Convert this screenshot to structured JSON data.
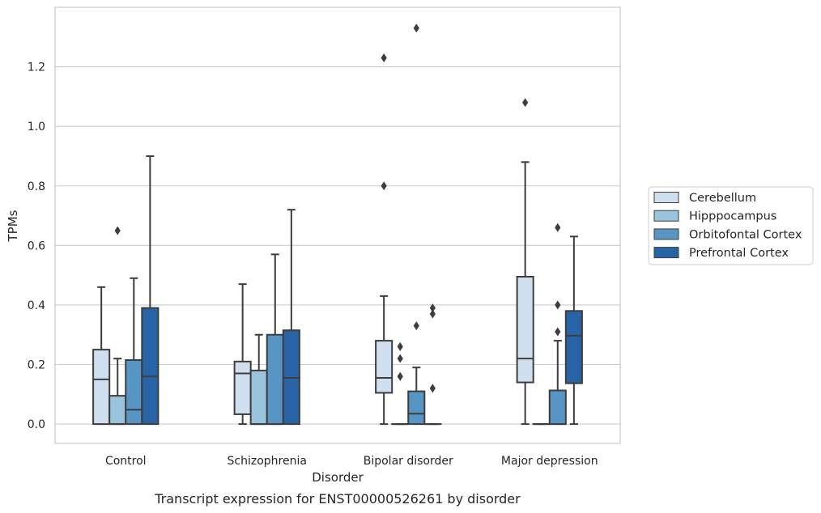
{
  "caption": "Transcript expression for ENST00000526261 by disorder",
  "chart_data": {
    "type": "box",
    "xlabel": "Disorder",
    "ylabel": "TPMs",
    "ylim": [
      -0.065,
      1.4
    ],
    "yticks": [
      "0.0",
      "0.2",
      "0.4",
      "0.6",
      "0.8",
      "1.0",
      "1.2"
    ],
    "grid": true,
    "legend_position": "right",
    "categories": [
      "Control",
      "Schizophrenia",
      "Bipolar disorder",
      "Major depression"
    ],
    "series": [
      {
        "name": "Cerebellum",
        "color": "#cfdff0",
        "boxes": [
          {
            "whisker_low": 0,
            "q1": 0,
            "median": 0.15,
            "q3": 0.25,
            "whisker_high": 0.46,
            "outliers": []
          },
          {
            "whisker_low": 0,
            "q1": 0.033,
            "median": 0.17,
            "q3": 0.21,
            "whisker_high": 0.47,
            "outliers": []
          },
          {
            "whisker_low": 0,
            "q1": 0.105,
            "median": 0.155,
            "q3": 0.28,
            "whisker_high": 0.43,
            "outliers": [
              0.8,
              1.23
            ]
          },
          {
            "whisker_low": 0,
            "q1": 0.14,
            "median": 0.22,
            "q3": 0.495,
            "whisker_high": 0.88,
            "outliers": [
              1.08
            ]
          }
        ]
      },
      {
        "name": "Hipppocampus",
        "color": "#9ac4de",
        "boxes": [
          {
            "whisker_low": 0,
            "q1": 0,
            "median": 0,
            "q3": 0.095,
            "whisker_high": 0.22,
            "outliers": [
              0.65
            ]
          },
          {
            "whisker_low": 0,
            "q1": 0,
            "median": 0,
            "q3": 0.18,
            "whisker_high": 0.3,
            "outliers": []
          },
          {
            "whisker_low": 0,
            "q1": 0,
            "median": 0,
            "q3": 0,
            "whisker_high": 0,
            "outliers": [
              0.16,
              0.22,
              0.26
            ]
          },
          {
            "whisker_low": 0,
            "q1": 0,
            "median": 0,
            "q3": 0,
            "whisker_high": 0,
            "outliers": []
          }
        ]
      },
      {
        "name": "Orbitofontal Cortex",
        "color": "#5796c4",
        "boxes": [
          {
            "whisker_low": 0,
            "q1": 0,
            "median": 0.048,
            "q3": 0.215,
            "whisker_high": 0.49,
            "outliers": []
          },
          {
            "whisker_low": 0,
            "q1": 0,
            "median": 0,
            "q3": 0.3,
            "whisker_high": 0.57,
            "outliers": []
          },
          {
            "whisker_low": 0,
            "q1": 0,
            "median": 0.035,
            "q3": 0.11,
            "whisker_high": 0.19,
            "outliers": [
              0.33,
              1.33
            ]
          },
          {
            "whisker_low": 0,
            "q1": 0,
            "median": 0,
            "q3": 0.113,
            "whisker_high": 0.28,
            "outliers": [
              0.31,
              0.4,
              0.66
            ]
          }
        ]
      },
      {
        "name": "Prefrontal Cortex",
        "color": "#2864a5",
        "boxes": [
          {
            "whisker_low": 0,
            "q1": 0,
            "median": 0.16,
            "q3": 0.39,
            "whisker_high": 0.9,
            "outliers": []
          },
          {
            "whisker_low": 0,
            "q1": 0,
            "median": 0.155,
            "q3": 0.315,
            "whisker_high": 0.72,
            "outliers": []
          },
          {
            "whisker_low": 0,
            "q1": 0,
            "median": 0,
            "q3": 0,
            "whisker_high": 0,
            "outliers": [
              0.12,
              0.37,
              0.39
            ]
          },
          {
            "whisker_low": 0,
            "q1": 0.137,
            "median": 0.297,
            "q3": 0.38,
            "whisker_high": 0.63,
            "outliers": []
          }
        ]
      }
    ]
  },
  "colors": {
    "box_edge": "#3d3d3d",
    "grid": "#cccccc",
    "frame": "#cccccc"
  }
}
